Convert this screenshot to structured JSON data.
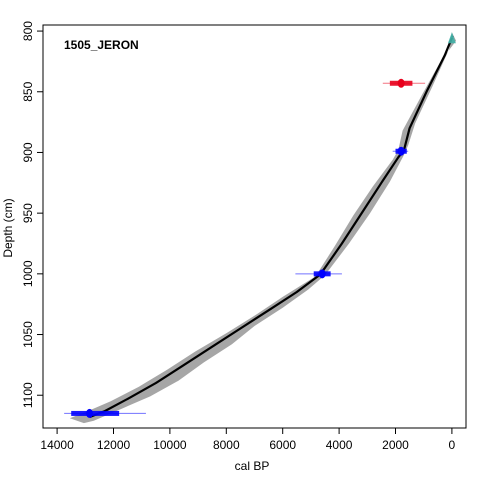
{
  "chart_data": {
    "type": "line",
    "title": "1505_JERON",
    "xlabel": "cal BP",
    "ylabel": "Depth (cm)",
    "x_reversed": true,
    "y_reversed": true,
    "xlim": [
      14500,
      -500
    ],
    "ylim": [
      795,
      1127
    ],
    "x_ticks": [
      14000,
      12000,
      10000,
      8000,
      6000,
      4000,
      2000,
      0
    ],
    "y_ticks": [
      800,
      850,
      900,
      950,
      1000,
      1050,
      1100
    ],
    "grid": false,
    "series": [
      {
        "role": "median_age_depth",
        "color": "#000000",
        "x": [
          -30,
          250,
          900,
          1500,
          1700,
          1900,
          2500,
          3200,
          3900,
          4500,
          4700,
          5500,
          6500,
          7500,
          8500,
          9500,
          10500,
          11500,
          12300,
          12850
        ],
        "y": [
          804,
          820,
          850,
          880,
          898,
          904,
          925,
          950,
          975,
          995,
          1001,
          1015,
          1030,
          1045,
          1060,
          1075,
          1090,
          1103,
          1113,
          1118
        ]
      },
      {
        "role": "uncertainty_envelope_lower",
        "color": "#a6a6a6",
        "x": [
          0,
          100,
          700,
          1300,
          1550,
          1700,
          2200,
          2900,
          3650,
          4300,
          4500,
          5100,
          6000,
          7000,
          7800,
          8800,
          9700,
          10700,
          11700,
          12700,
          13050
        ],
        "y": [
          801,
          815,
          846,
          876,
          894,
          902,
          924,
          950,
          975,
          995,
          1001,
          1013,
          1028,
          1043,
          1058,
          1073,
          1088,
          1101,
          1111,
          1121,
          1123
        ]
      },
      {
        "role": "uncertainty_envelope_upper",
        "color": "#a6a6a6",
        "x": [
          -150,
          400,
          1050,
          1750,
          1900,
          2100,
          2800,
          3500,
          4150,
          4700,
          4900,
          6000,
          6900,
          8000,
          9100,
          10100,
          11100,
          12100,
          12900,
          13550
        ],
        "y": [
          808,
          825,
          852,
          882,
          898,
          906,
          928,
          952,
          977,
          997,
          1003,
          1019,
          1033,
          1049,
          1064,
          1079,
          1093,
          1105,
          1113,
          1119
        ]
      }
    ],
    "dates": [
      {
        "role": "core_top",
        "color": "#40b0a6",
        "age": 0,
        "depth": 805,
        "age_range": [
          -100,
          100
        ],
        "depth_range": [
          801,
          810
        ]
      },
      {
        "role": "outlier_radiocarbon",
        "color": "#e8001c",
        "age": 1800,
        "depth": 843,
        "age_range": [
          1400,
          2200
        ],
        "whisker_range": [
          950,
          2450
        ]
      },
      {
        "role": "radiocarbon",
        "color": "#0000ff",
        "age": 1800,
        "depth": 899,
        "age_range": [
          1600,
          2000
        ],
        "whisker_range": [
          1550,
          2100
        ]
      },
      {
        "role": "radiocarbon",
        "color": "#0000ff",
        "age": 4600,
        "depth": 1000,
        "age_range": [
          4300,
          4900
        ],
        "whisker_range": [
          3900,
          5550
        ]
      },
      {
        "role": "radiocarbon",
        "color": "#0000ff",
        "age": 12850,
        "depth": 1115,
        "age_range": [
          11800,
          13500
        ],
        "whisker_range": [
          10850,
          13750
        ]
      }
    ]
  }
}
